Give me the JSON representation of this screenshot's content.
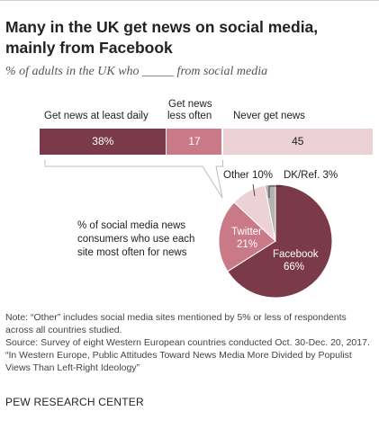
{
  "title": "Many in the UK get news on social media, mainly from Facebook",
  "subtitle": "% of adults in the UK who _____ from social media",
  "chart_data": [
    {
      "type": "bar",
      "orientation": "horizontal",
      "stacked": true,
      "categories": [
        "Get news at least daily",
        "Get news less often",
        "Never get news"
      ],
      "values": [
        38,
        17,
        45
      ],
      "value_labels": [
        "38%",
        "17",
        "45"
      ],
      "xlim": [
        0,
        100
      ],
      "colors": [
        "#7b3a4a",
        "#c97a86",
        "#ecd2d6"
      ]
    },
    {
      "type": "pie",
      "description": "% of social media news consumers who use each site most often for news",
      "categories": [
        "Facebook",
        "Twitter",
        "Other",
        "DK/Ref."
      ],
      "values": [
        66,
        21,
        10,
        3
      ],
      "value_labels": [
        "66%",
        "21%",
        "10%",
        "3%"
      ],
      "colors": [
        "#7b3a4a",
        "#c97a86",
        "#ecd2d6",
        "#b3b3b3"
      ]
    }
  ],
  "pie_labels": {
    "facebook": "Facebook",
    "facebook_pct": "66%",
    "twitter": "Twitter",
    "twitter_pct": "21%",
    "other": "Other 10%",
    "dk": "DK/Ref. 3%"
  },
  "bar_labels": {
    "daily": "Get news at least daily",
    "less_line1": "Get news",
    "less_line2": "less often",
    "never": "Never get news"
  },
  "pie_note": "% of social media news consumers who use each site most often for news",
  "notes": [
    "Note: “Other” includes social media sites mentioned by 5% or less of respondents across all countries studied.",
    "Source: Survey of eight Western European countries conducted Oct. 30-Dec. 20, 2017.",
    "“In Western Europe, Public Attitudes Toward News Media More Divided by Populist Views Than Left-Right Ideology”"
  ],
  "footer": "PEW RESEARCH CENTER"
}
